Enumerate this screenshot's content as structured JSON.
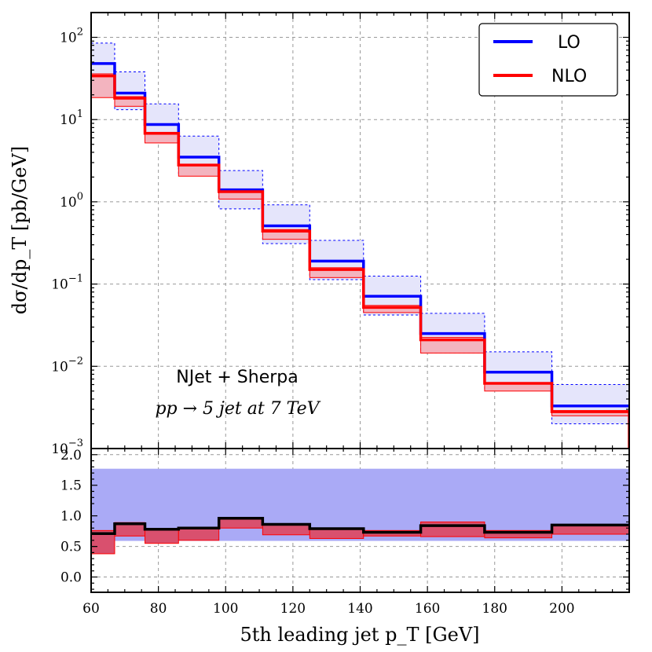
{
  "chart_data": [
    {
      "type": "line",
      "panel": "main",
      "style": "step",
      "xlabel": "5th leading jet p_T [GeV]",
      "ylabel": "dσ/dp_T [pb/GeV]",
      "xlim": [
        60,
        220
      ],
      "ylim": [
        0.001,
        200
      ],
      "yscale": "log",
      "grid": true,
      "legend": "top-right",
      "bin_edges": [
        60,
        67,
        76,
        86,
        98,
        111,
        125,
        141,
        158,
        177,
        197,
        220
      ],
      "series": [
        {
          "name": "LO",
          "color": "#0000ff",
          "values": [
            48,
            21,
            8.7,
            3.5,
            1.4,
            0.51,
            0.19,
            0.071,
            0.025,
            0.0085,
            0.0033
          ],
          "band_low": [
            28,
            13.2,
            5.5,
            2.2,
            0.82,
            0.31,
            0.113,
            0.042,
            0.0146,
            0.0051,
            0.002
          ],
          "band_high": [
            85,
            38,
            15.5,
            6.3,
            2.4,
            0.92,
            0.34,
            0.125,
            0.044,
            0.015,
            0.006
          ]
        },
        {
          "name": "NLO",
          "color": "#ff0000",
          "values": [
            34,
            18.2,
            6.8,
            2.8,
            1.33,
            0.44,
            0.15,
            0.052,
            0.021,
            0.0062,
            0.0028
          ],
          "band_low": [
            18.5,
            14.5,
            5.2,
            2.05,
            1.08,
            0.35,
            0.12,
            0.045,
            0.0145,
            0.005,
            0.0025
          ],
          "band_high": [
            36,
            19.0,
            7.0,
            2.85,
            1.38,
            0.46,
            0.158,
            0.055,
            0.0225,
            0.0063,
            0.0029
          ]
        }
      ],
      "annotations": [
        "NJet + Sherpa",
        "pp → 5 jet at 7 TeV"
      ]
    },
    {
      "type": "line",
      "panel": "ratio",
      "style": "step",
      "xlim": [
        60,
        220
      ],
      "ylim": [
        -0.25,
        2.1
      ],
      "xticks": [
        60,
        80,
        100,
        120,
        140,
        160,
        180,
        200
      ],
      "yticks": [
        0.0,
        0.5,
        1.0,
        1.5,
        2.0
      ],
      "ratio_values": [
        0.71,
        0.87,
        0.78,
        0.8,
        0.96,
        0.86,
        0.79,
        0.73,
        0.84,
        0.73,
        0.85
      ],
      "lo_band": [
        0.59,
        1.77
      ],
      "nlo_band_low": [
        0.38,
        0.67,
        0.55,
        0.6,
        0.8,
        0.69,
        0.63,
        0.67,
        0.66,
        0.64,
        0.7
      ],
      "nlo_band_high": [
        0.76,
        0.89,
        0.79,
        0.81,
        0.97,
        0.87,
        0.8,
        0.76,
        0.9,
        0.76,
        0.86
      ]
    }
  ],
  "text": {
    "legend_lo": "LO",
    "legend_nlo": "NLO",
    "anno_line1": "NJet + Sherpa",
    "anno_line2": "pp → 5 jet at 7 TeV",
    "xlabel": "5th leading jet p_T [GeV]",
    "ylabel": "dσ/dp_T [pb/GeV]"
  },
  "colors": {
    "lo": "#0000ff",
    "nlo": "#ff0000",
    "lo_band_main": "#e5e5fb",
    "nlo_band_main": "#f3b4bf",
    "lo_band_ratio": "#aaaaf6",
    "nlo_band_ratio": "#d9506e"
  }
}
